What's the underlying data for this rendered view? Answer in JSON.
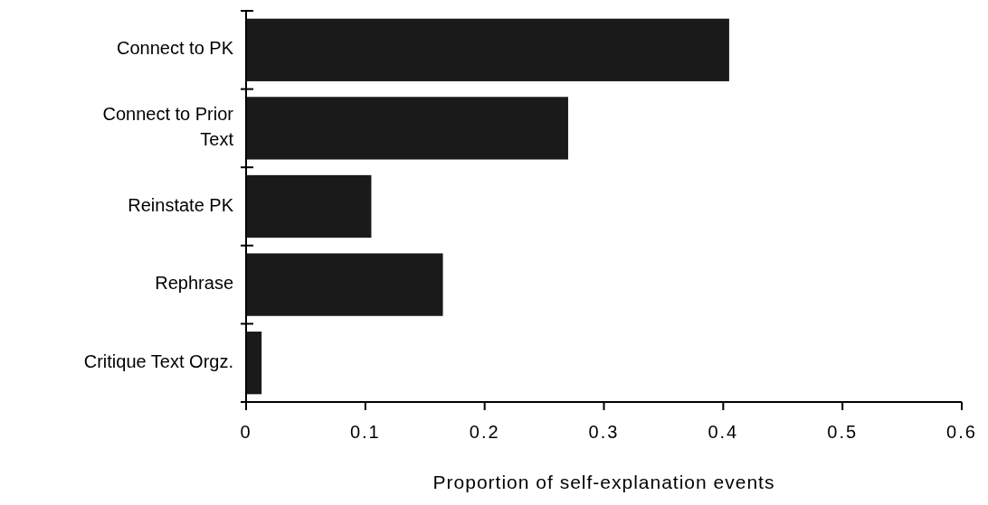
{
  "chart_data": {
    "type": "bar",
    "orientation": "horizontal",
    "xlabel": "Proportion of self-explanation events",
    "categories": [
      "Connect to PK",
      "Connect to Prior Text",
      "Reinstate PK",
      "Rephrase",
      "Critique Text Orgz."
    ],
    "values": [
      0.405,
      0.27,
      0.105,
      0.165,
      0.013
    ],
    "color": "#1a1a1a",
    "xlim": [
      0,
      0.6
    ],
    "xticks": [
      0,
      0.1,
      0.2,
      0.3,
      0.4,
      0.5,
      0.6
    ],
    "grid": false
  }
}
